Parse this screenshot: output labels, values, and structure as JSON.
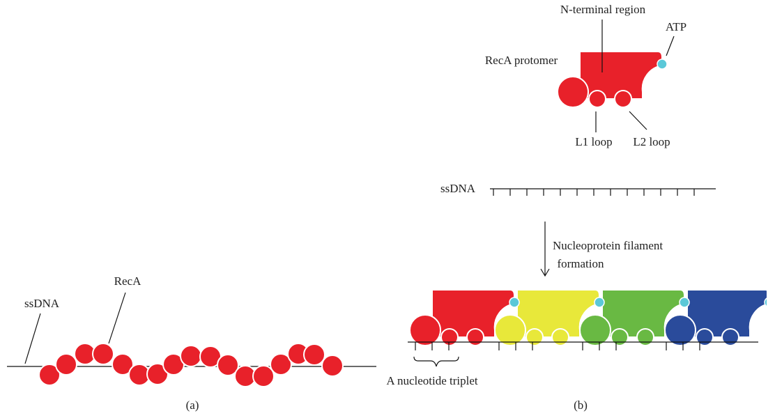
{
  "panel_a": {
    "ssdna_label": "ssDNA",
    "reca_label": "RecA",
    "caption": "(a)"
  },
  "panel_b": {
    "n_terminal_label": "N-terminal region",
    "atp_label": "ATP",
    "protomer_label": "RecA protomer",
    "l1_label": "L1 loop",
    "l2_label": "L2 loop",
    "ssdna_label": "ssDNA",
    "filament_label": [
      "Nucleoprotein filament",
      "formation"
    ],
    "triplet_label": "A nucleotide triplet",
    "caption": "(b)"
  }
}
